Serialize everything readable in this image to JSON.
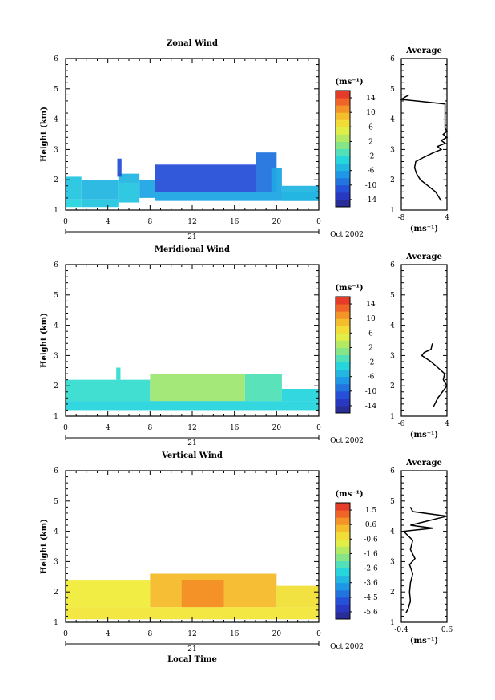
{
  "chart_data": [
    {
      "type": "heatmap",
      "title": "Zonal Wind",
      "ylabel": "Height (km)",
      "xlim": [
        0,
        24
      ],
      "ylim": [
        1,
        6
      ],
      "xticks": [
        "0",
        "4",
        "8",
        "12",
        "16",
        "20",
        "0"
      ],
      "yticks": [
        "1",
        "2",
        "3",
        "4",
        "5",
        "6"
      ],
      "date_label": "21",
      "month_label": "Oct 2002",
      "colorbar": {
        "unit_label": "(ms⁻¹)",
        "ticks": [
          "14",
          "10",
          "6",
          "2",
          "-2",
          "-6",
          "-10",
          "-14"
        ],
        "range": [
          -16,
          16
        ]
      },
      "cells": [
        {
          "t": [
            0,
            1.5
          ],
          "h": [
            1.1,
            1.35
          ],
          "v": -3
        },
        {
          "t": [
            0,
            1.5
          ],
          "h": [
            1.35,
            2.1
          ],
          "v": -4
        },
        {
          "t": [
            1.5,
            5
          ],
          "h": [
            1.1,
            1.35
          ],
          "v": -4
        },
        {
          "t": [
            1.5,
            5
          ],
          "h": [
            1.35,
            2.0
          ],
          "v": -5
        },
        {
          "t": [
            5,
            7
          ],
          "h": [
            1.25,
            1.9
          ],
          "v": -4
        },
        {
          "t": [
            5,
            7
          ],
          "h": [
            1.9,
            2.2
          ],
          "v": -5
        },
        {
          "t": [
            4.9,
            5.3
          ],
          "h": [
            2.1,
            2.7
          ],
          "v": -11
        },
        {
          "t": [
            7,
            8.5
          ],
          "h": [
            1.4,
            2.0
          ],
          "v": -6
        },
        {
          "t": [
            8.5,
            24
          ],
          "h": [
            1.3,
            1.6
          ],
          "v": -6
        },
        {
          "t": [
            8.5,
            18
          ],
          "h": [
            1.6,
            2.5
          ],
          "v": -11
        },
        {
          "t": [
            18,
            20
          ],
          "h": [
            1.6,
            2.9
          ],
          "v": -9
        },
        {
          "t": [
            19.5,
            20.5
          ],
          "h": [
            1.6,
            2.4
          ],
          "v": -6
        },
        {
          "t": [
            20.5,
            24
          ],
          "h": [
            1.3,
            1.8
          ],
          "v": -5
        }
      ],
      "avg_profile": {
        "title": "Average",
        "xlabel": "(ms⁻¹)",
        "xlim": [
          -8,
          4
        ],
        "xticks": [
          "-8",
          "4"
        ],
        "h": [
          1.3,
          1.4,
          1.6,
          1.8,
          2.0,
          2.2,
          2.4,
          2.6,
          2.75,
          2.9,
          3.0,
          3.1,
          3.2,
          3.3,
          3.4,
          3.5,
          3.6,
          3.7,
          4.5,
          4.65,
          4.8
        ],
        "v": [
          2.5,
          2.0,
          1.0,
          -1.0,
          -3.0,
          -4.0,
          -4.5,
          -4.2,
          -2.0,
          0.5,
          2.5,
          1.5,
          3.5,
          2.5,
          4.0,
          3.0,
          4.0,
          3.5,
          3.5,
          -8,
          -6
        ]
      }
    },
    {
      "type": "heatmap",
      "title": "Meridional Wind",
      "ylabel": "Height (km)",
      "xlim": [
        0,
        24
      ],
      "ylim": [
        1,
        6
      ],
      "xticks": [
        "0",
        "4",
        "8",
        "12",
        "16",
        "20",
        "0"
      ],
      "yticks": [
        "1",
        "2",
        "3",
        "4",
        "5",
        "6"
      ],
      "date_label": "21",
      "month_label": "Oct 2002",
      "colorbar": {
        "unit_label": "(ms⁻¹)",
        "ticks": [
          "14",
          "10",
          "6",
          "2",
          "-2",
          "-6",
          "-10",
          "-14"
        ],
        "range": [
          -16,
          16
        ]
      },
      "cells": [
        {
          "t": [
            0,
            24
          ],
          "h": [
            1.2,
            1.5
          ],
          "v": -3
        },
        {
          "t": [
            0,
            8
          ],
          "h": [
            1.5,
            2.2
          ],
          "v": -2
        },
        {
          "t": [
            4.8,
            5.2
          ],
          "h": [
            2.2,
            2.6
          ],
          "v": -2
        },
        {
          "t": [
            8,
            17
          ],
          "h": [
            1.5,
            2.4
          ],
          "v": 2
        },
        {
          "t": [
            17,
            20.5
          ],
          "h": [
            1.5,
            2.4
          ],
          "v": -1
        },
        {
          "t": [
            20.5,
            24
          ],
          "h": [
            1.5,
            1.9
          ],
          "v": -3
        }
      ],
      "avg_profile": {
        "title": "Average",
        "xlabel": "(ms⁻¹)",
        "xlim": [
          -6,
          4
        ],
        "xticks": [
          "-6",
          "4"
        ],
        "h": [
          1.3,
          1.6,
          1.9,
          2.0,
          2.2,
          2.4,
          2.6,
          2.8,
          3.0,
          3.1,
          3.2,
          3.4
        ],
        "v": [
          1.0,
          2.0,
          3.5,
          4.0,
          3.2,
          3.5,
          2.0,
          0.5,
          -1.5,
          -1.0,
          0.5,
          0.8
        ]
      }
    },
    {
      "type": "heatmap",
      "title": "Vertical Wind",
      "ylabel": "Height (km)",
      "xlabel": "Local Time",
      "xlim": [
        0,
        24
      ],
      "ylim": [
        1,
        6
      ],
      "xticks": [
        "0",
        "4",
        "8",
        "12",
        "16",
        "20",
        "0"
      ],
      "yticks": [
        "1",
        "2",
        "3",
        "4",
        "5",
        "6"
      ],
      "date_label": "21",
      "month_label": "Oct 2002",
      "colorbar": {
        "unit_label": "(ms⁻¹)",
        "ticks": [
          "1.5",
          "0.6",
          "-0.6",
          "-1.6",
          "-2.6",
          "-3.6",
          "-4.5",
          "-5.6"
        ],
        "range": [
          -6.0,
          2.0
        ]
      },
      "cells": [
        {
          "t": [
            0,
            24
          ],
          "h": [
            1.1,
            1.5
          ],
          "v": -0.4
        },
        {
          "t": [
            0,
            8
          ],
          "h": [
            1.5,
            2.4
          ],
          "v": -0.5
        },
        {
          "t": [
            8,
            20
          ],
          "h": [
            1.5,
            2.6
          ],
          "v": 0.3
        },
        {
          "t": [
            11,
            15
          ],
          "h": [
            1.5,
            2.4
          ],
          "v": 0.8
        },
        {
          "t": [
            20,
            24
          ],
          "h": [
            1.5,
            2.2
          ],
          "v": -0.3
        }
      ],
      "avg_profile": {
        "title": "Average",
        "xlabel": "(ms⁻¹)",
        "xlim": [
          -0.4,
          0.6
        ],
        "xticks": [
          "-0.4",
          "0.6"
        ],
        "h": [
          1.3,
          1.45,
          1.7,
          2.0,
          2.3,
          2.6,
          2.9,
          3.1,
          3.4,
          3.7,
          4.0,
          4.1,
          4.2,
          4.5,
          4.65,
          4.8
        ],
        "v": [
          -0.3,
          -0.25,
          -0.2,
          -0.22,
          -0.2,
          -0.15,
          -0.22,
          -0.1,
          -0.2,
          -0.15,
          -0.35,
          0.3,
          -0.2,
          0.6,
          -0.15,
          -0.2
        ]
      }
    }
  ]
}
